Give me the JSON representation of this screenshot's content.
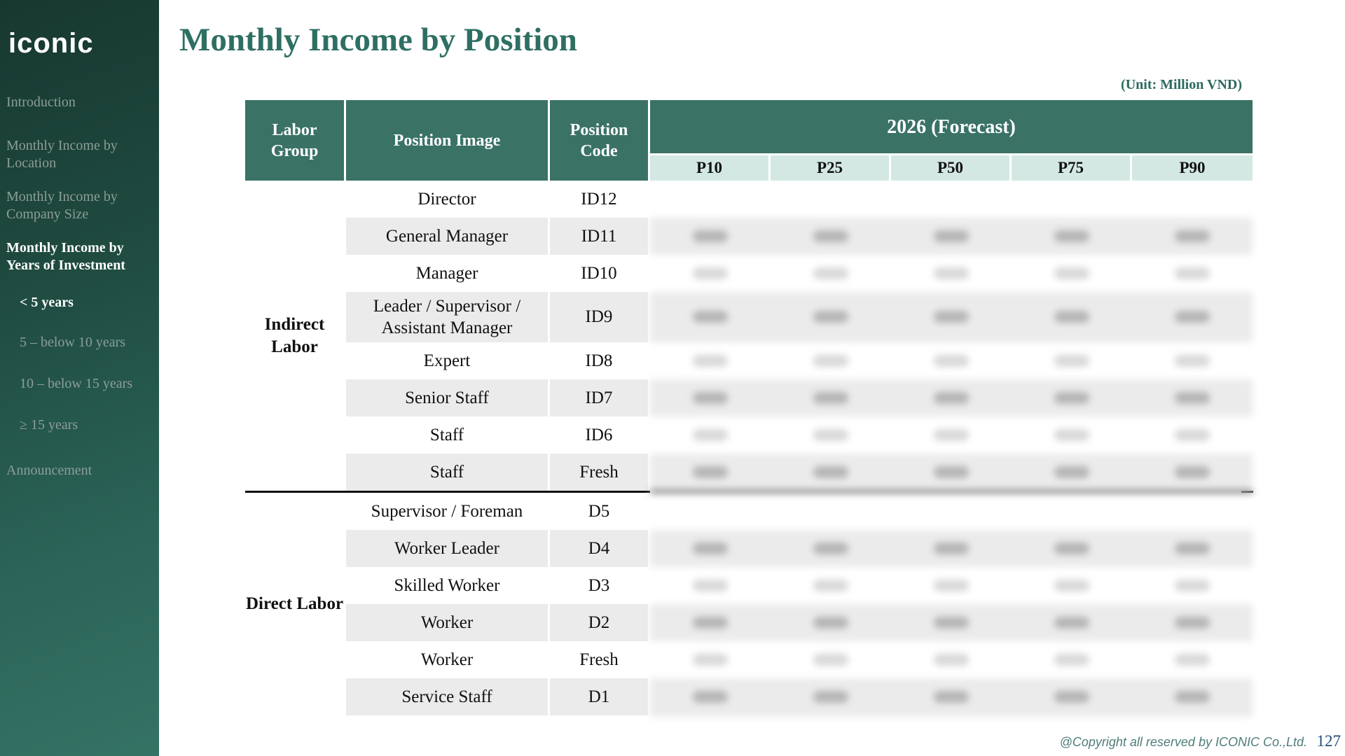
{
  "colors": {
    "header_teal": "#3a7266",
    "subheader_mint": "#d3e8e3",
    "stripe_gray": "#ebebeb",
    "title_teal": "#2f6f63",
    "unit_note_teal": "#2d6a60",
    "copyright_teal": "#4f7d7a",
    "page_number_blue": "#1f4e79",
    "sidebar_gradient": [
      "#17382f",
      "#357365"
    ]
  },
  "sidebar": {
    "logo_text": "iconic",
    "items": [
      {
        "label": "Introduction",
        "active": false,
        "sub": false
      },
      {
        "label": "Monthly Income by Location",
        "active": false,
        "sub": false
      },
      {
        "label": "Monthly Income by Company Size",
        "active": false,
        "sub": false
      },
      {
        "label": "Monthly Income by Years of Investment",
        "active": true,
        "sub": false
      },
      {
        "label": "< 5 years",
        "active": true,
        "sub": true
      },
      {
        "label": "5 – below 10 years",
        "active": false,
        "sub": true
      },
      {
        "label": "10 – below 15 years",
        "active": false,
        "sub": true
      },
      {
        "label": "≥ 15 years",
        "active": false,
        "sub": true
      },
      {
        "label": "Announcement",
        "active": false,
        "sub": false
      }
    ]
  },
  "header": {
    "title": "Monthly Income by Position"
  },
  "table": {
    "unit_note": "(Unit: Million VND)",
    "headers": {
      "labor_group": "Labor Group",
      "position_image": "Position Image",
      "position_code": "Position Code",
      "forecast": "2026 (Forecast)"
    },
    "percentiles": [
      "P10",
      "P25",
      "P50",
      "P75",
      "P90"
    ],
    "groups": [
      {
        "label": "Indirect Labor"
      },
      {
        "label": "Direct Labor"
      }
    ],
    "rows": [
      {
        "group": "Indirect Labor",
        "position": "Director",
        "code": "ID12",
        "forecast_values": "blank"
      },
      {
        "group": "Indirect Labor",
        "position": "General Manager",
        "code": "ID11",
        "forecast_values": "blurred"
      },
      {
        "group": "Indirect Labor",
        "position": "Manager",
        "code": "ID10",
        "forecast_values": "blurred"
      },
      {
        "group": "Indirect Labor",
        "position": "Leader / Supervisor / Assistant Manager",
        "code": "ID9",
        "forecast_values": "blurred"
      },
      {
        "group": "Indirect Labor",
        "position": "Expert",
        "code": "ID8",
        "forecast_values": "blurred"
      },
      {
        "group": "Indirect Labor",
        "position": "Senior Staff",
        "code": "ID7",
        "forecast_values": "blurred"
      },
      {
        "group": "Indirect Labor",
        "position": "Staff",
        "code": "ID6",
        "forecast_values": "blurred"
      },
      {
        "group": "Indirect Labor",
        "position": "Staff",
        "code": "Fresh",
        "forecast_values": "blurred"
      },
      {
        "group": "Direct Labor",
        "position": "Supervisor / Foreman",
        "code": "D5",
        "forecast_values": "blank"
      },
      {
        "group": "Direct Labor",
        "position": "Worker Leader",
        "code": "D4",
        "forecast_values": "blurred"
      },
      {
        "group": "Direct Labor",
        "position": "Skilled Worker",
        "code": "D3",
        "forecast_values": "blurred"
      },
      {
        "group": "Direct Labor",
        "position": "Worker",
        "code": "D2",
        "forecast_values": "blurred"
      },
      {
        "group": "Direct Labor",
        "position": "Worker",
        "code": "Fresh",
        "forecast_values": "blurred"
      },
      {
        "group": "Direct Labor",
        "position": "Service Staff",
        "code": "D1",
        "forecast_values": "blurred"
      }
    ]
  },
  "footer": {
    "copyright": "@Copyright all reserved by ICONIC Co.,Ltd.",
    "page_number": "127"
  }
}
